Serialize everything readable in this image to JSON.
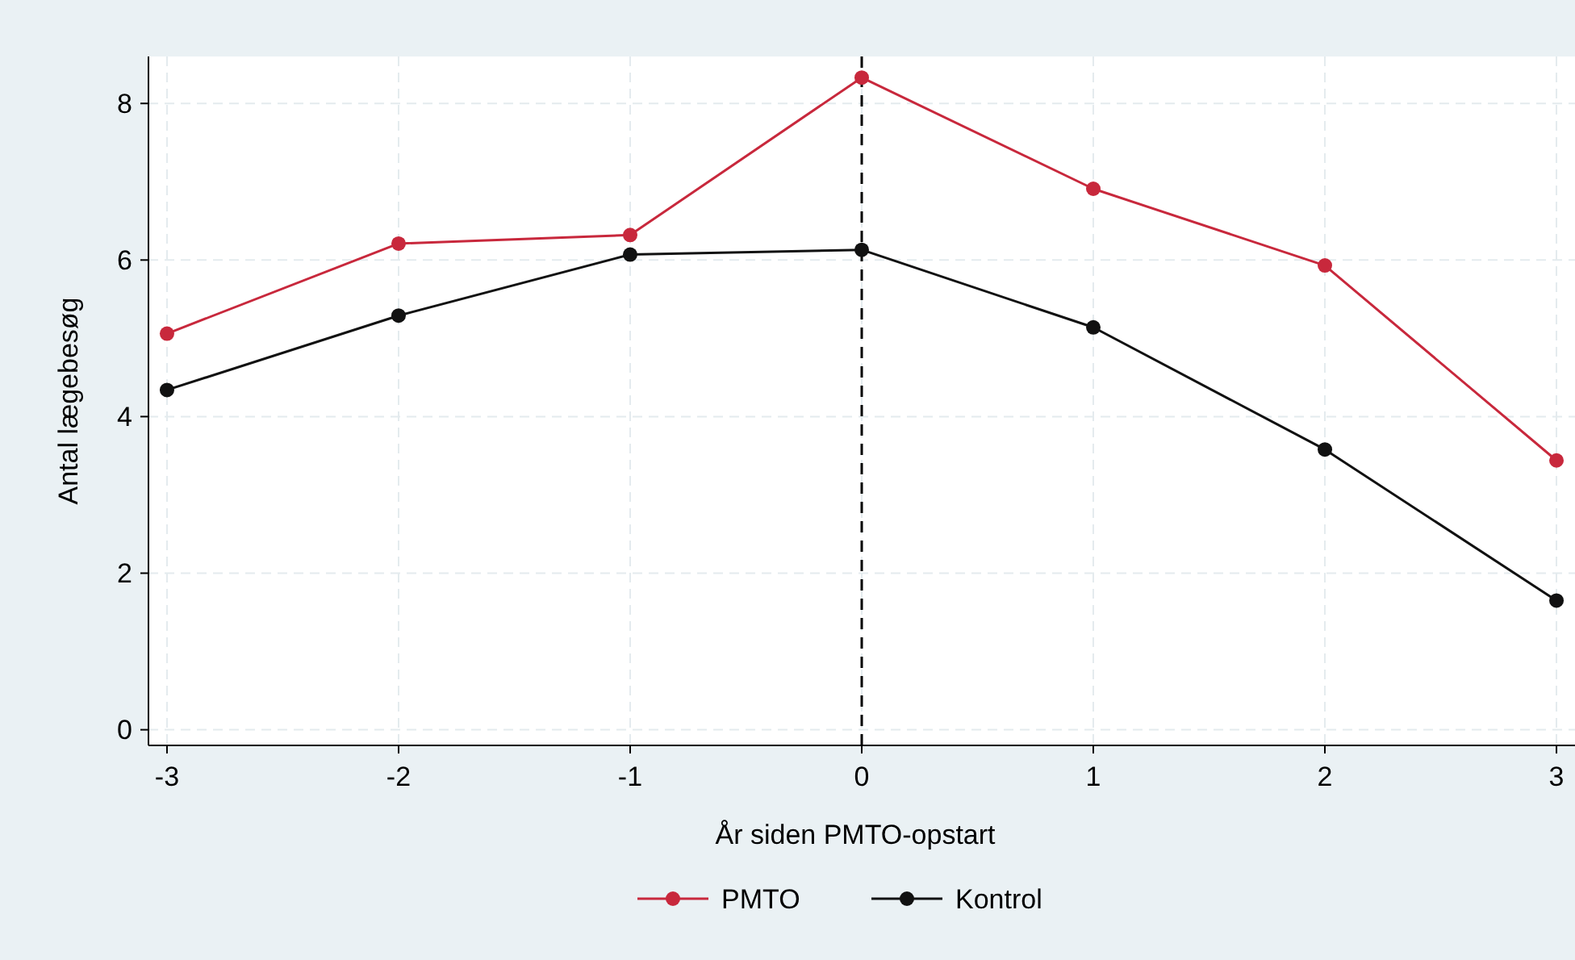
{
  "chart_data": {
    "type": "line",
    "xlabel": "År siden PMTO-opstart",
    "ylabel": "Antal lægebesøg",
    "x": [
      -3,
      -2,
      -1,
      0,
      1,
      2,
      3
    ],
    "xlim": [
      -3.08,
      3.08
    ],
    "xticks": [
      -3,
      -2,
      -1,
      0,
      1,
      2,
      3
    ],
    "ylim": [
      -0.2,
      8.6
    ],
    "yticks": [
      0,
      2,
      4,
      6,
      8
    ],
    "grid": true,
    "legend": "bottom",
    "marker": "circle",
    "line_style": "solid",
    "ref_lines": [
      {
        "axis": "x",
        "value": 0,
        "color": "#000000",
        "line_style": "dashed"
      }
    ],
    "series": [
      {
        "name": "PMTO",
        "color": "#c8283c",
        "values": [
          5.06,
          6.21,
          6.32,
          8.33,
          6.91,
          5.93,
          3.44
        ]
      },
      {
        "name": "Kontrol",
        "color": "#111111",
        "values": [
          4.34,
          5.29,
          6.07,
          6.13,
          5.14,
          3.58,
          1.65
        ]
      }
    ]
  }
}
